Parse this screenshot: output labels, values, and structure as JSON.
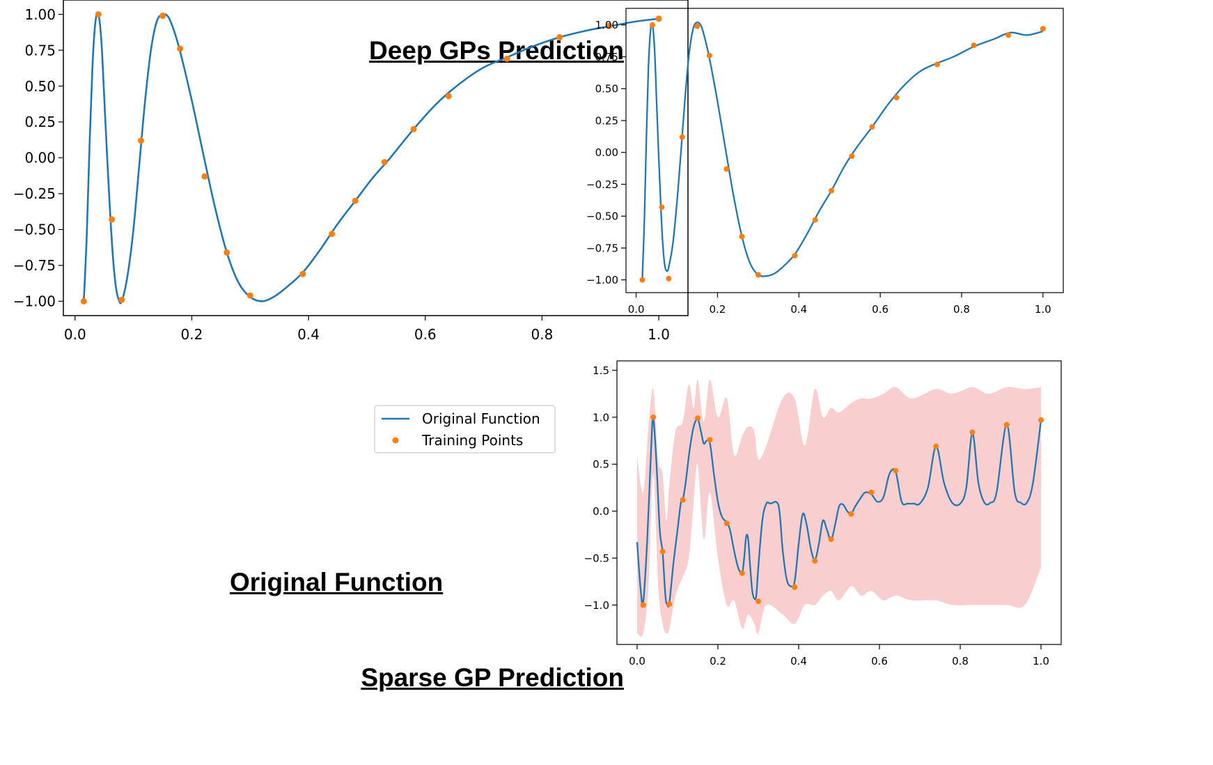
{
  "captions": {
    "original": "Original Function",
    "deep": "Deep GPs Prediction",
    "sparse": "Sparse GP Prediction"
  },
  "colors": {
    "line": "#1f77b4",
    "points": "#ff7f0e",
    "band": "#f4a6a6"
  },
  "chart_data": [
    {
      "id": "original",
      "type": "line",
      "xlim": [
        -0.02,
        1.05
      ],
      "ylim": [
        -1.1,
        1.1
      ],
      "xticks": [
        0.0,
        0.2,
        0.4,
        0.6,
        0.8,
        1.0
      ],
      "xtick_labels": [
        "0.0",
        "0.2",
        "0.4",
        "0.6",
        "0.8",
        "1.0"
      ],
      "yticks": [
        1.0,
        0.75,
        0.5,
        0.25,
        0.0,
        -0.25,
        -0.5,
        -0.75,
        -1.0
      ],
      "ytick_labels": [
        "1.00",
        "0.75",
        "0.50",
        "0.25",
        "0.00",
        "−0.25",
        "−0.50",
        "−0.75",
        "−1.00"
      ],
      "legend": {
        "placement": "lower right",
        "entries": [
          "Original Function",
          "Training Points"
        ]
      },
      "series": [
        {
          "name": "Original Function",
          "kind": "line",
          "x": [
            0.015,
            0.02,
            0.025,
            0.03,
            0.035,
            0.04,
            0.045,
            0.05,
            0.055,
            0.06,
            0.065,
            0.07,
            0.075,
            0.08,
            0.09,
            0.1,
            0.11,
            0.12,
            0.13,
            0.14,
            0.15,
            0.16,
            0.17,
            0.18,
            0.2,
            0.22,
            0.24,
            0.26,
            0.28,
            0.3,
            0.32,
            0.34,
            0.36,
            0.39,
            0.42,
            0.45,
            0.48,
            0.51,
            0.54,
            0.58,
            0.62,
            0.66,
            0.7,
            0.74,
            0.78,
            0.83,
            0.88,
            0.92,
            0.96,
            1.0
          ],
          "y": [
            -1.0,
            -0.55,
            0.1,
            0.65,
            0.95,
            1.0,
            0.82,
            0.42,
            0.0,
            -0.38,
            -0.7,
            -0.9,
            -0.99,
            -1.0,
            -0.82,
            -0.5,
            -0.05,
            0.4,
            0.75,
            0.95,
            1.0,
            0.98,
            0.88,
            0.74,
            0.4,
            0.02,
            -0.35,
            -0.66,
            -0.87,
            -0.97,
            -1.0,
            -0.97,
            -0.91,
            -0.8,
            -0.64,
            -0.46,
            -0.3,
            -0.14,
            0.0,
            0.2,
            0.38,
            0.52,
            0.63,
            0.7,
            0.77,
            0.84,
            0.89,
            0.92,
            0.95,
            0.97
          ]
        },
        {
          "name": "Training Points",
          "kind": "scatter",
          "x": [
            0.015,
            0.04,
            0.063,
            0.08,
            0.113,
            0.15,
            0.18,
            0.222,
            0.26,
            0.3,
            0.39,
            0.44,
            0.48,
            0.53,
            0.58,
            0.64,
            0.74,
            0.83,
            0.915,
            1.0
          ],
          "y": [
            -1.0,
            1.0,
            -0.43,
            -0.99,
            0.12,
            0.99,
            0.76,
            -0.13,
            -0.66,
            -0.96,
            -0.81,
            -0.53,
            -0.3,
            -0.03,
            0.2,
            0.43,
            0.69,
            0.84,
            0.92,
            0.97
          ]
        }
      ]
    },
    {
      "id": "deep",
      "type": "line",
      "xlim": [
        -0.025,
        1.05
      ],
      "ylim": [
        -1.1,
        1.13
      ],
      "xticks": [
        0.0,
        0.2,
        0.4,
        0.6,
        0.8,
        1.0
      ],
      "xtick_labels": [
        "0.0",
        "0.2",
        "0.4",
        "0.6",
        "0.8",
        "1.0"
      ],
      "yticks": [
        1.0,
        0.75,
        0.5,
        0.25,
        0.0,
        -0.25,
        -0.5,
        -0.75,
        -1.0
      ],
      "ytick_labels": [
        "1.00",
        "0.75",
        "0.50",
        "0.25",
        "0.00",
        "−0.25",
        "−0.50",
        "−0.75",
        "−1.00"
      ],
      "series": [
        {
          "kind": "line",
          "x": [
            0.015,
            0.02,
            0.025,
            0.03,
            0.035,
            0.04,
            0.045,
            0.05,
            0.055,
            0.06,
            0.065,
            0.07,
            0.075,
            0.08,
            0.09,
            0.1,
            0.11,
            0.12,
            0.13,
            0.14,
            0.15,
            0.16,
            0.17,
            0.18,
            0.2,
            0.22,
            0.24,
            0.26,
            0.28,
            0.3,
            0.32,
            0.34,
            0.36,
            0.39,
            0.42,
            0.45,
            0.48,
            0.51,
            0.54,
            0.58,
            0.62,
            0.66,
            0.7,
            0.74,
            0.78,
            0.83,
            0.88,
            0.92,
            0.96,
            1.0
          ],
          "y": [
            -1.0,
            -0.55,
            0.1,
            0.65,
            0.95,
            1.0,
            0.82,
            0.42,
            0.0,
            -0.38,
            -0.7,
            -0.88,
            -0.93,
            -0.9,
            -0.72,
            -0.4,
            0.0,
            0.42,
            0.77,
            0.97,
            1.02,
            0.99,
            0.88,
            0.74,
            0.4,
            0.02,
            -0.35,
            -0.66,
            -0.87,
            -0.96,
            -0.97,
            -0.95,
            -0.9,
            -0.8,
            -0.64,
            -0.46,
            -0.3,
            -0.12,
            0.03,
            0.2,
            0.38,
            0.53,
            0.64,
            0.7,
            0.75,
            0.83,
            0.89,
            0.94,
            0.92,
            0.95
          ]
        },
        {
          "kind": "scatter",
          "x": [
            0.015,
            0.04,
            0.063,
            0.08,
            0.113,
            0.15,
            0.18,
            0.222,
            0.26,
            0.3,
            0.39,
            0.44,
            0.48,
            0.53,
            0.58,
            0.64,
            0.74,
            0.83,
            0.915,
            1.0
          ],
          "y": [
            -1.0,
            1.0,
            -0.43,
            -0.99,
            0.12,
            0.99,
            0.76,
            -0.13,
            -0.66,
            -0.96,
            -0.81,
            -0.53,
            -0.3,
            -0.03,
            0.2,
            0.43,
            0.69,
            0.84,
            0.92,
            0.97
          ]
        }
      ]
    },
    {
      "id": "sparse",
      "type": "line",
      "xlim": [
        -0.05,
        1.05
      ],
      "ylim": [
        -1.42,
        1.6
      ],
      "xticks": [
        0.0,
        0.2,
        0.4,
        0.6,
        0.8,
        1.0
      ],
      "xtick_labels": [
        "0.0",
        "0.2",
        "0.4",
        "0.6",
        "0.8",
        "1.0"
      ],
      "yticks": [
        1.5,
        1.0,
        0.5,
        0.0,
        -0.5,
        -1.0
      ],
      "ytick_labels": [
        "1.5",
        "1.0",
        "0.5",
        "0.0",
        "−0.5",
        "−1.0"
      ],
      "series": [
        {
          "kind": "band",
          "x": [
            0.0,
            0.015,
            0.028,
            0.04,
            0.052,
            0.063,
            0.072,
            0.08,
            0.095,
            0.113,
            0.128,
            0.14,
            0.15,
            0.165,
            0.18,
            0.2,
            0.222,
            0.24,
            0.26,
            0.275,
            0.29,
            0.3,
            0.32,
            0.36,
            0.39,
            0.415,
            0.44,
            0.46,
            0.48,
            0.5,
            0.53,
            0.555,
            0.58,
            0.61,
            0.64,
            0.68,
            0.74,
            0.78,
            0.83,
            0.87,
            0.915,
            0.96,
            1.0
          ],
          "upper": [
            0.58,
            0.2,
            0.9,
            1.3,
            0.55,
            0.4,
            -0.1,
            0.3,
            0.85,
            0.95,
            1.35,
            1.1,
            1.4,
            0.95,
            1.4,
            1.0,
            1.2,
            0.6,
            0.8,
            0.9,
            0.85,
            0.55,
            0.7,
            1.2,
            1.2,
            0.7,
            1.3,
            1.0,
            1.1,
            1.05,
            1.15,
            1.2,
            1.2,
            1.25,
            1.32,
            1.2,
            1.3,
            1.25,
            1.32,
            1.25,
            1.32,
            1.3,
            1.32
          ],
          "lower": [
            -1.3,
            -1.3,
            -0.8,
            0.4,
            -0.8,
            -1.2,
            -1.3,
            -1.25,
            -0.9,
            -0.7,
            -0.5,
            0.1,
            0.5,
            -0.3,
            0.2,
            -0.5,
            -1.0,
            -0.95,
            -1.25,
            -1.1,
            -1.2,
            -1.3,
            -1.0,
            -1.1,
            -1.2,
            -1.0,
            -1.0,
            -0.9,
            -0.85,
            -0.95,
            -0.8,
            -0.9,
            -0.85,
            -0.95,
            -0.9,
            -0.95,
            -0.95,
            -1.0,
            -1.0,
            -1.0,
            -1.0,
            -1.0,
            -0.6
          ]
        },
        {
          "kind": "line",
          "x": [
            0.0,
            0.008,
            0.015,
            0.025,
            0.035,
            0.04,
            0.048,
            0.056,
            0.063,
            0.07,
            0.075,
            0.08,
            0.09,
            0.1,
            0.108,
            0.113,
            0.12,
            0.13,
            0.14,
            0.15,
            0.158,
            0.165,
            0.172,
            0.18,
            0.19,
            0.2,
            0.21,
            0.222,
            0.23,
            0.24,
            0.25,
            0.26,
            0.265,
            0.27,
            0.275,
            0.28,
            0.285,
            0.29,
            0.295,
            0.3,
            0.31,
            0.32,
            0.33,
            0.35,
            0.36,
            0.37,
            0.38,
            0.39,
            0.4,
            0.41,
            0.42,
            0.43,
            0.44,
            0.45,
            0.46,
            0.47,
            0.48,
            0.49,
            0.5,
            0.51,
            0.52,
            0.53,
            0.54,
            0.555,
            0.565,
            0.58,
            0.595,
            0.61,
            0.625,
            0.64,
            0.655,
            0.67,
            0.685,
            0.7,
            0.72,
            0.74,
            0.76,
            0.78,
            0.8,
            0.815,
            0.83,
            0.845,
            0.86,
            0.875,
            0.89,
            0.915,
            0.935,
            0.95,
            0.965,
            0.98,
            1.0
          ],
          "y": [
            -0.33,
            -0.8,
            -0.97,
            -0.3,
            0.7,
            0.99,
            0.5,
            -0.2,
            -0.43,
            -0.9,
            -1.0,
            -0.97,
            -0.55,
            -0.2,
            0.08,
            0.12,
            0.3,
            0.65,
            0.9,
            0.98,
            0.85,
            0.72,
            0.75,
            0.73,
            0.4,
            0.1,
            -0.06,
            -0.12,
            -0.2,
            -0.42,
            -0.6,
            -0.66,
            -0.5,
            -0.27,
            -0.3,
            -0.6,
            -0.85,
            -0.93,
            -0.9,
            -0.6,
            -0.1,
            0.08,
            0.08,
            0.06,
            -0.4,
            -0.72,
            -0.8,
            -0.75,
            -0.35,
            -0.03,
            -0.15,
            -0.4,
            -0.52,
            -0.35,
            -0.1,
            -0.2,
            -0.31,
            -0.15,
            0.05,
            0.07,
            0.0,
            -0.03,
            0.05,
            0.15,
            0.2,
            0.18,
            0.1,
            0.15,
            0.4,
            0.42,
            0.1,
            0.08,
            0.08,
            0.08,
            0.25,
            0.69,
            0.3,
            0.09,
            0.08,
            0.25,
            0.83,
            0.3,
            0.09,
            0.09,
            0.2,
            0.92,
            0.2,
            0.09,
            0.09,
            0.3,
            0.97
          ]
        },
        {
          "kind": "scatter",
          "x": [
            0.015,
            0.04,
            0.063,
            0.08,
            0.113,
            0.15,
            0.18,
            0.222,
            0.26,
            0.3,
            0.39,
            0.44,
            0.48,
            0.53,
            0.58,
            0.64,
            0.74,
            0.83,
            0.915,
            1.0
          ],
          "y": [
            -1.0,
            1.0,
            -0.43,
            -0.99,
            0.12,
            0.99,
            0.76,
            -0.13,
            -0.66,
            -0.96,
            -0.81,
            -0.53,
            -0.3,
            -0.03,
            0.2,
            0.43,
            0.69,
            0.84,
            0.92,
            0.97
          ]
        }
      ]
    }
  ]
}
